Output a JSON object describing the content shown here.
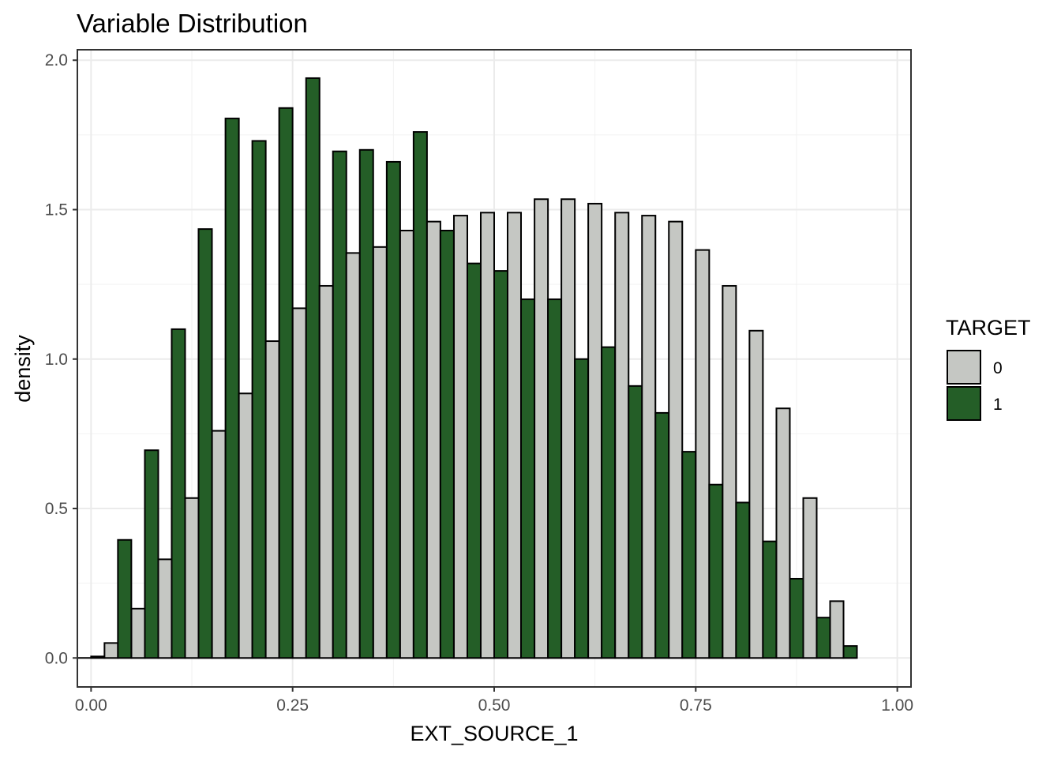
{
  "chart_data": {
    "type": "bar",
    "title": "Variable Distribution",
    "xlabel": "EXT_SOURCE_1",
    "ylabel": "density",
    "xlim": [
      -0.017,
      1.017
    ],
    "ylim": [
      -0.097,
      2.035
    ],
    "x_ticks": [
      "0.00",
      "0.25",
      "0.50",
      "0.75",
      "1.00"
    ],
    "y_ticks": [
      "0.0",
      "0.5",
      "1.0",
      "1.5",
      "2.0"
    ],
    "grid": true,
    "legend": {
      "title": "TARGET",
      "placement": "right"
    },
    "bar_width": 0.0333,
    "x": [
      0.0,
      0.0333,
      0.0667,
      0.1,
      0.1333,
      0.1667,
      0.2,
      0.2333,
      0.2667,
      0.3,
      0.3333,
      0.3667,
      0.4,
      0.4333,
      0.4667,
      0.5,
      0.5333,
      0.5667,
      0.6,
      0.6333,
      0.6667,
      0.7,
      0.7333,
      0.7667,
      0.8,
      0.8333,
      0.8667,
      0.9,
      0.9333
    ],
    "series": [
      {
        "name": "0",
        "color": "#c5c7c3",
        "values": [
          0.0,
          0.05,
          0.165,
          0.33,
          0.535,
          0.76,
          0.885,
          1.06,
          1.17,
          1.245,
          1.355,
          1.375,
          1.43,
          1.46,
          1.48,
          1.49,
          1.49,
          1.535,
          1.535,
          1.52,
          1.49,
          1.48,
          1.46,
          1.365,
          1.245,
          1.095,
          0.835,
          0.535,
          0.19
        ]
      },
      {
        "name": "1",
        "color": "#245e27",
        "values": [
          0.005,
          0.395,
          0.695,
          1.1,
          1.435,
          1.805,
          1.73,
          1.84,
          1.94,
          1.695,
          1.7,
          1.66,
          1.76,
          1.43,
          1.32,
          1.295,
          1.2,
          1.2,
          1.0,
          1.04,
          0.91,
          0.82,
          0.69,
          0.58,
          0.52,
          0.39,
          0.265,
          0.135,
          0.04
        ]
      }
    ]
  }
}
